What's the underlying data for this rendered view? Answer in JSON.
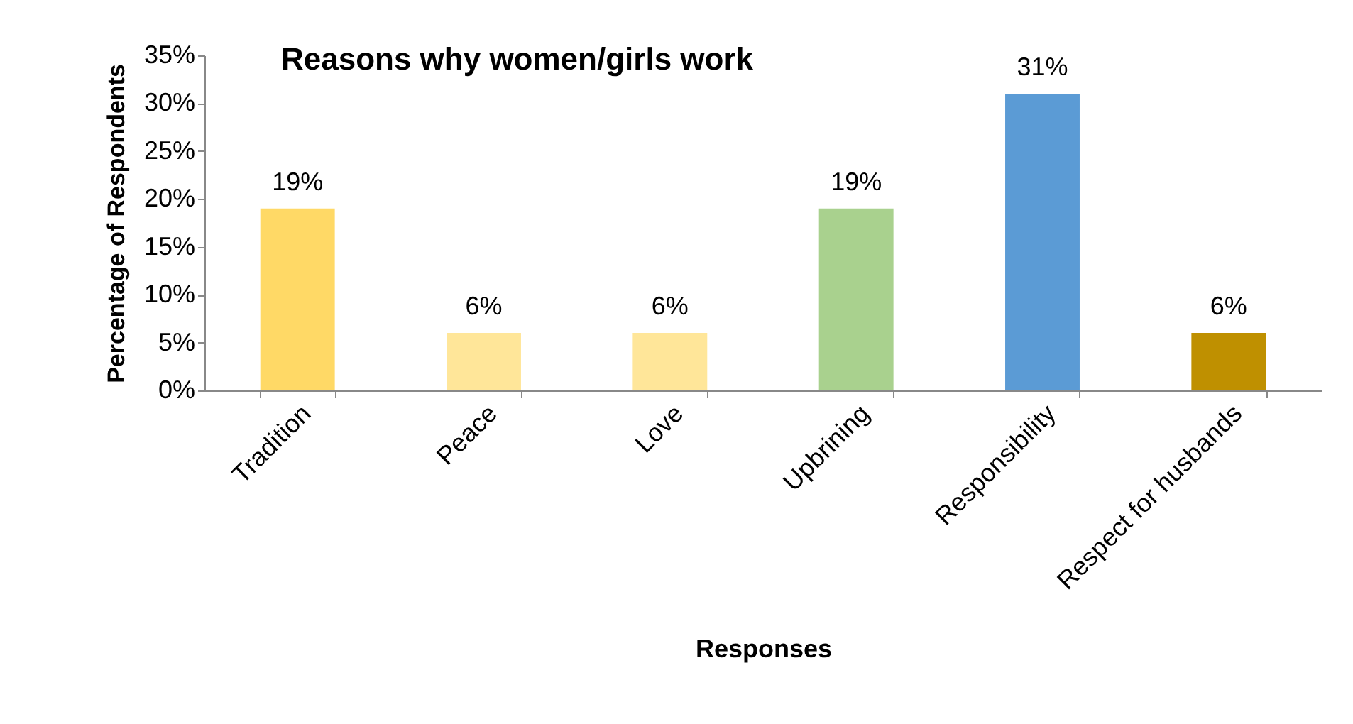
{
  "chart_data": {
    "type": "bar",
    "title": "Reasons why women/girls work",
    "xlabel": "Responses",
    "ylabel": "Percentage of Respondents",
    "categories": [
      "Tradition",
      "Peace",
      "Love",
      "Upbrining",
      "Responsibility",
      "Respect for husbands"
    ],
    "values": [
      19,
      6,
      6,
      19,
      31,
      6
    ],
    "colors": [
      "#ffd966",
      "#ffe699",
      "#ffe699",
      "#a9d18e",
      "#5b9bd5",
      "#bf9000"
    ],
    "value_labels": [
      "19%",
      "6%",
      "6%",
      "19%",
      "31%",
      "6%"
    ],
    "ylim": [
      0,
      35
    ],
    "yticks": [
      {
        "value": 0,
        "label": "0%"
      },
      {
        "value": 5,
        "label": "5%"
      },
      {
        "value": 10,
        "label": "10%"
      },
      {
        "value": 15,
        "label": "15%"
      },
      {
        "value": 20,
        "label": "20%"
      },
      {
        "value": 25,
        "label": "25%"
      },
      {
        "value": 30,
        "label": "30%"
      },
      {
        "value": 35,
        "label": "35%"
      }
    ],
    "grid": false
  }
}
